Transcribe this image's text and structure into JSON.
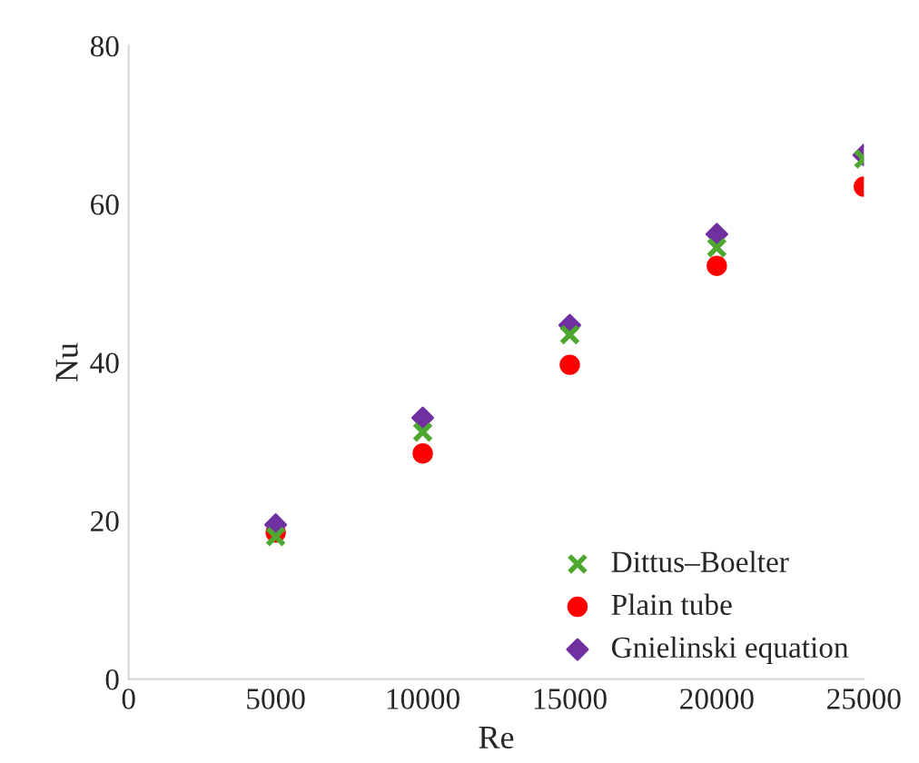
{
  "chart_data": {
    "type": "scatter",
    "xlabel": "Re",
    "ylabel": "Nu",
    "x": [
      5000,
      10000,
      15000,
      20000,
      25000
    ],
    "series": [
      {
        "name": "Dittus–Boelter",
        "color": "#4ea72e",
        "marker": "cross",
        "values": [
          18,
          31.2,
          43.5,
          54.5,
          65.7
        ]
      },
      {
        "name": "Plain tube",
        "color": "#ff0000",
        "marker": "circle",
        "values": [
          18.5,
          28.5,
          39.7,
          52.2,
          62.2
        ]
      },
      {
        "name": "Gnielinski equation",
        "color": "#7030a0",
        "marker": "diamond",
        "values": [
          19.5,
          33,
          44.7,
          56.2,
          66.2
        ]
      }
    ],
    "xlim": [
      0,
      25000
    ],
    "xticks": [
      0,
      5000,
      10000,
      15000,
      20000,
      25000
    ],
    "ylim": [
      0,
      80
    ],
    "yticks": [
      0,
      20,
      40,
      60,
      80
    ],
    "grid": false,
    "legend": "bottom right"
  }
}
